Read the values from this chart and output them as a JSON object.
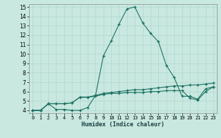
{
  "xlabel": "Humidex (Indice chaleur)",
  "bg_color": "#c8e8e0",
  "line_color": "#1a7060",
  "grid_color": "#b0d8d0",
  "xlim": [
    -0.5,
    23.4
  ],
  "ylim": [
    3.7,
    15.3
  ],
  "xticks": [
    0,
    1,
    2,
    3,
    4,
    5,
    6,
    7,
    8,
    9,
    10,
    11,
    12,
    13,
    14,
    15,
    16,
    17,
    18,
    19,
    20,
    21,
    22,
    23
  ],
  "yticks": [
    4,
    5,
    6,
    7,
    8,
    9,
    10,
    11,
    12,
    13,
    14,
    15
  ],
  "series": [
    [
      4.0,
      4.0,
      4.7,
      4.1,
      4.1,
      4.0,
      4.0,
      4.3,
      5.6,
      9.8,
      11.4,
      13.2,
      14.8,
      15.0,
      13.3,
      12.2,
      11.3,
      8.8,
      7.5,
      5.5,
      5.5,
      5.2,
      6.3,
      6.5
    ],
    [
      4.0,
      4.0,
      4.7,
      4.7,
      4.7,
      4.8,
      5.4,
      5.4,
      5.6,
      5.8,
      5.9,
      6.0,
      6.1,
      6.2,
      6.2,
      6.3,
      6.4,
      6.5,
      6.6,
      6.6,
      6.7,
      6.7,
      6.8,
      6.9
    ],
    [
      4.0,
      4.0,
      4.7,
      4.7,
      4.7,
      4.8,
      5.4,
      5.4,
      5.5,
      5.7,
      5.8,
      5.8,
      5.9,
      5.9,
      5.9,
      6.0,
      6.0,
      6.1,
      6.1,
      6.1,
      5.3,
      5.1,
      6.0,
      6.5
    ]
  ]
}
